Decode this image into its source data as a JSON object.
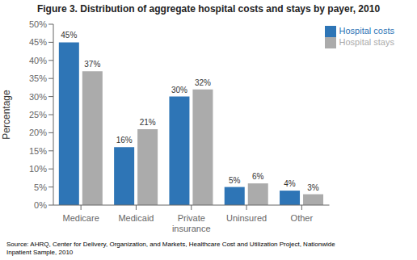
{
  "chart_data": {
    "type": "bar",
    "title": "Figure 3. Distribution of aggregate hospital costs and stays by payer, 2010",
    "categories": [
      "Medicare",
      "Medicaid",
      "Private\ninsurance",
      "Uninsured",
      "Other"
    ],
    "series": [
      {
        "name": "Hospital costs",
        "color": "#2E75B6",
        "values": [
          45,
          16,
          30,
          5,
          4
        ],
        "value_labels": [
          "45%",
          "16%",
          "30%",
          "5%",
          "4%"
        ]
      },
      {
        "name": "Hospital stays",
        "color": "#ABABAB",
        "values": [
          37,
          21,
          32,
          6,
          3
        ],
        "value_labels": [
          "37%",
          "21%",
          "32%",
          "6%",
          "3%"
        ]
      }
    ],
    "ylabel": "Percentage",
    "ylim": [
      0,
      50
    ],
    "yticks": [
      {
        "value": 0,
        "label": "0%"
      },
      {
        "value": 5,
        "label": "5%"
      },
      {
        "value": 10,
        "label": "10%"
      },
      {
        "value": 15,
        "label": "15%"
      },
      {
        "value": 20,
        "label": "20%"
      },
      {
        "value": 25,
        "label": "25%"
      },
      {
        "value": 30,
        "label": "30%"
      },
      {
        "value": 35,
        "label": "35%"
      },
      {
        "value": 40,
        "label": "40%"
      },
      {
        "value": 45,
        "label": "45%"
      },
      {
        "value": 50,
        "label": "50%"
      }
    ],
    "data_labels": true,
    "grid": false,
    "legend": "upper right",
    "source": "Source: AHRQ, Center for Delivery, Organization, and Markets, Healthcare Cost and Utilization Project, Nationwide\nInpatient Sample, 2010"
  }
}
